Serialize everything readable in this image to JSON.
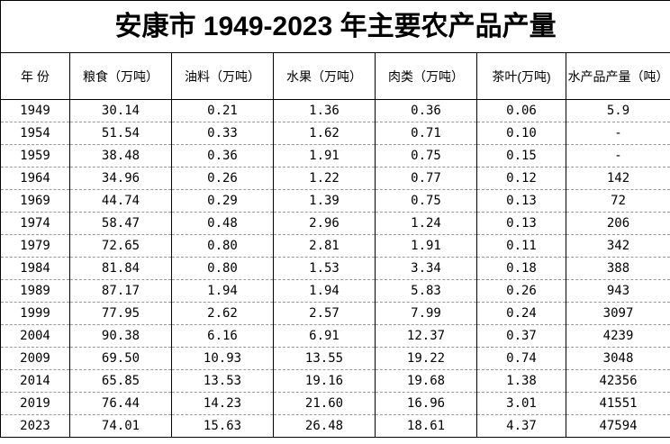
{
  "table": {
    "title": "安康市 1949-2023 年主要农产品产量",
    "headers": [
      "年 份",
      "粮食（万吨）",
      "油料（万吨）",
      "水果（万吨）",
      "肉类（万吨）",
      "茶叶(万吨)",
      "水产品产量（吨）"
    ],
    "rows": [
      [
        "1949",
        "30.14",
        "0.21",
        "1.36",
        "0.36",
        "0.06",
        "5.9"
      ],
      [
        "1954",
        "51.54",
        "0.33",
        "1.62",
        "0.71",
        "0.10",
        "-"
      ],
      [
        "1959",
        "38.48",
        "0.36",
        "1.91",
        "0.75",
        "0.15",
        "-"
      ],
      [
        "1964",
        "34.96",
        "0.26",
        "1.22",
        "0.77",
        "0.12",
        "142"
      ],
      [
        "1969",
        "44.74",
        "0.29",
        "1.39",
        "0.75",
        "0.13",
        "72"
      ],
      [
        "1974",
        "58.47",
        "0.48",
        "2.96",
        "1.24",
        "0.13",
        "206"
      ],
      [
        "1979",
        "72.65",
        "0.80",
        "2.81",
        "1.91",
        "0.11",
        "342"
      ],
      [
        "1984",
        "81.84",
        "0.80",
        "1.53",
        "3.34",
        "0.18",
        "388"
      ],
      [
        "1989",
        "87.17",
        "1.94",
        "1.94",
        "5.83",
        "0.26",
        "943"
      ],
      [
        "1999",
        "77.95",
        "2.62",
        "2.57",
        "7.99",
        "0.24",
        "3097"
      ],
      [
        "2004",
        "90.38",
        "6.16",
        "6.91",
        "12.37",
        "0.37",
        "4239"
      ],
      [
        "2009",
        "69.50",
        "10.93",
        "13.55",
        "19.22",
        "0.74",
        "3048"
      ],
      [
        "2014",
        "65.85",
        "13.53",
        "19.16",
        "19.68",
        "1.38",
        "42356"
      ],
      [
        "2019",
        "76.44",
        "14.23",
        "21.60",
        "16.96",
        "3.01",
        "41551"
      ],
      [
        "2023",
        "74.01",
        "15.63",
        "26.48",
        "18.61",
        "4.37",
        "47594"
      ]
    ]
  }
}
